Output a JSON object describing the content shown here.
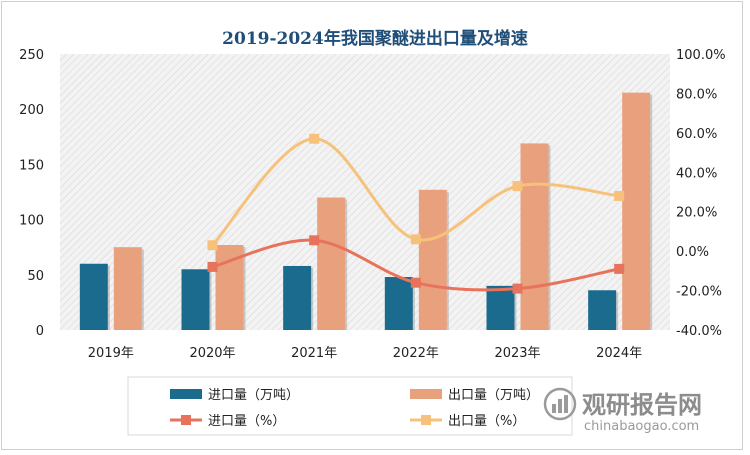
{
  "chart_data": {
    "type": "bar",
    "title": "2019-2024年我国聚醚进出口量及增速",
    "categories": [
      "2019年",
      "2020年",
      "2021年",
      "2022年",
      "2023年",
      "2024年"
    ],
    "ylim_left": [
      0,
      250
    ],
    "yticks_left": [
      "0",
      "50",
      "100",
      "150",
      "200",
      "250"
    ],
    "ylim_right": [
      -40,
      100
    ],
    "yticks_right": [
      "-40.0%",
      "-20.0%",
      "0.0%",
      "20.0%",
      "40.0%",
      "60.0%",
      "80.0%",
      "100.0%"
    ],
    "series": [
      {
        "name": "进口量（万吨）",
        "type": "bar",
        "axis": "left",
        "color": "#1a6b8e",
        "values": [
          60,
          55,
          58,
          48,
          40,
          36
        ]
      },
      {
        "name": "出口量（万吨）",
        "type": "bar",
        "axis": "left",
        "color": "#e9a07c",
        "values": [
          75,
          77,
          120,
          127,
          169,
          215
        ]
      },
      {
        "name": "进口量（%）",
        "type": "line",
        "axis": "right",
        "color": "#e8735c",
        "values": [
          null,
          -8,
          5.5,
          -16,
          -19,
          -9
        ]
      },
      {
        "name": "出口量（%）",
        "type": "line",
        "axis": "right",
        "color": "#f6c27b",
        "values": [
          null,
          3,
          57,
          6,
          33,
          28
        ]
      }
    ],
    "grid": false,
    "legend": "bottom"
  },
  "watermark": {
    "logo_icon": "chart-bars-logo-icon",
    "text_cn": "观研报告网",
    "text_en": "chinabaogao.com"
  }
}
